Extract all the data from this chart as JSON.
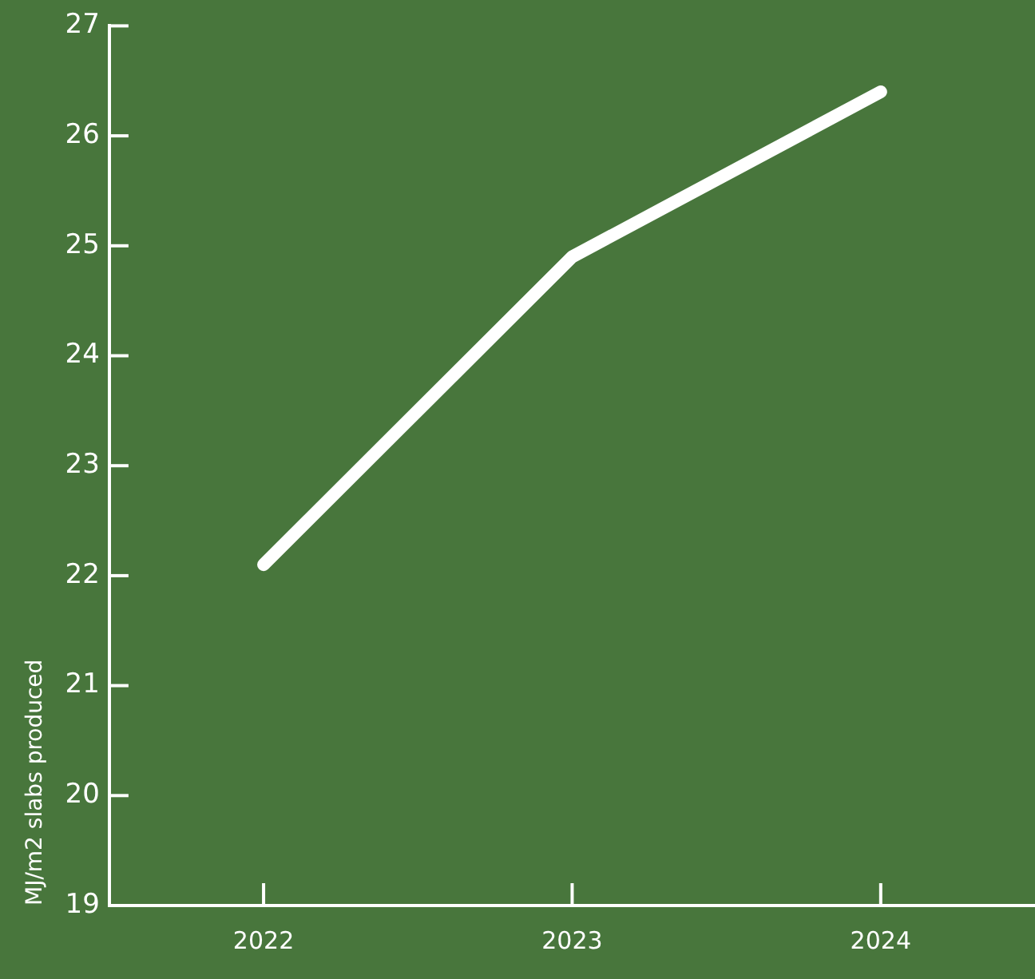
{
  "chart_data": {
    "type": "line",
    "ylabel": "MJ/m2 slabs produced",
    "categories": [
      "2022",
      "2023",
      "2024"
    ],
    "series": [
      {
        "color": "#ffffff",
        "values": [
          22.1,
          24.9,
          26.4
        ]
      }
    ],
    "ylim": [
      19,
      27
    ],
    "yticks": [
      19,
      20,
      21,
      22,
      23,
      24,
      25,
      26,
      27
    ],
    "grid": false,
    "legend": false,
    "marker": "none",
    "line_style": "solid"
  }
}
